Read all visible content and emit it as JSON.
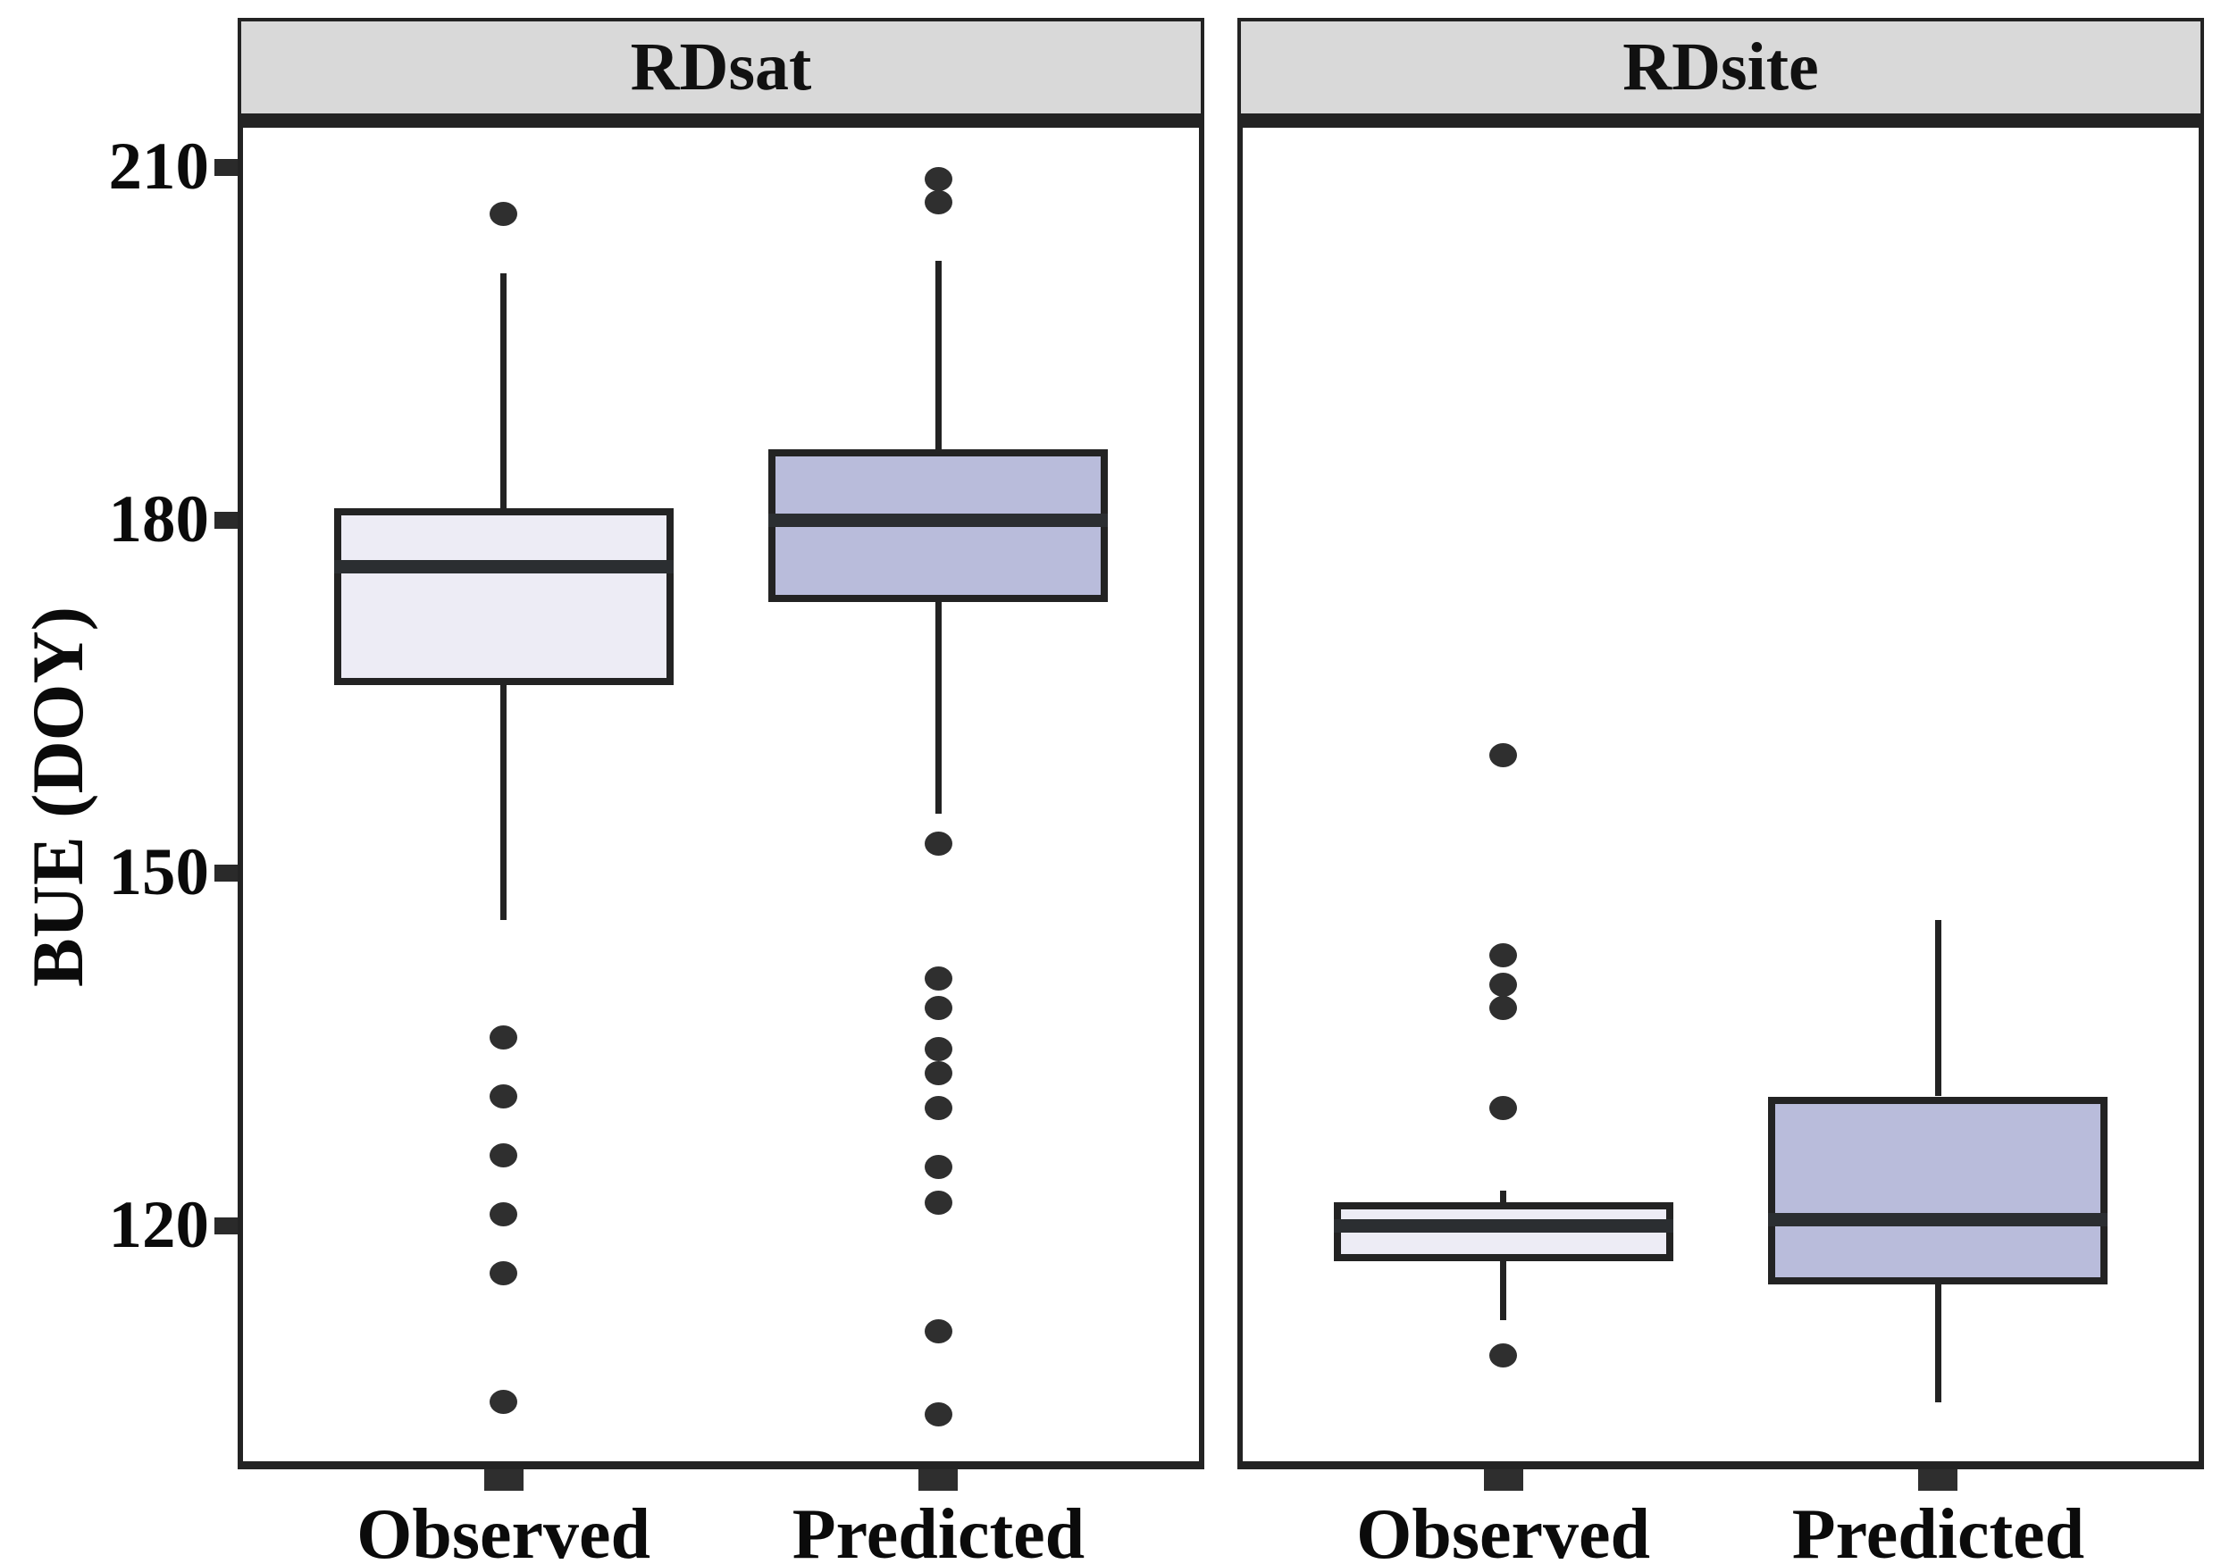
{
  "chart_data": {
    "type": "boxplot",
    "title": "",
    "ylabel": "BUE (DOY)",
    "xlabel": "",
    "y_ticks": [
      210,
      180,
      150,
      120
    ],
    "ylim": [
      99.3,
      213.8
    ],
    "grid": false,
    "legend": null,
    "categories": [
      "Observed",
      "Predicted"
    ],
    "facets": [
      {
        "label": "RDsat",
        "boxes": [
          {
            "category": "Observed",
            "fill": "#EDECF5",
            "stats": {
              "whisker_high": 201,
              "q3": 181,
              "median": 176,
              "q1": 166,
              "whisker_low": 146
            },
            "outliers_above": [
              206
            ],
            "outliers_below": [
              136,
              131,
              126,
              121,
              116,
              105
            ]
          },
          {
            "category": "Predicted",
            "fill": "#B9BCDB",
            "stats": {
              "whisker_high": 202,
              "q3": 186,
              "median": 180,
              "q1": 173,
              "whisker_low": 155
            },
            "outliers_above": [
              209,
              207
            ],
            "outliers_below": [
              152.5,
              141,
              138.5,
              135,
              133,
              130,
              125,
              122,
              111,
              104
            ]
          }
        ]
      },
      {
        "label": "RDsite",
        "boxes": [
          {
            "category": "Observed",
            "fill": "#EDECF5",
            "stats": {
              "whisker_high": 123,
              "q3": 122,
              "median": 120,
              "q1": 117,
              "whisker_low": 112
            },
            "outliers_above": [
              160,
              143,
              140.5,
              138.5,
              130
            ],
            "outliers_below": [
              109
            ]
          },
          {
            "category": "Predicted",
            "fill": "#B9BCDB",
            "stats": {
              "whisker_high": 146,
              "q3": 131,
              "median": 120.5,
              "q1": 115,
              "whisker_low": 105
            },
            "outliers_above": [],
            "outliers_below": []
          }
        ]
      }
    ],
    "colors": {
      "observed_fill": "#EDECF5",
      "predicted_fill": "#B9BCDB",
      "stroke": "#232323",
      "outlier_dot": "#2F2F2F",
      "facet_header_fill": "#D9D9D9",
      "background": "#FFFFFF"
    }
  }
}
